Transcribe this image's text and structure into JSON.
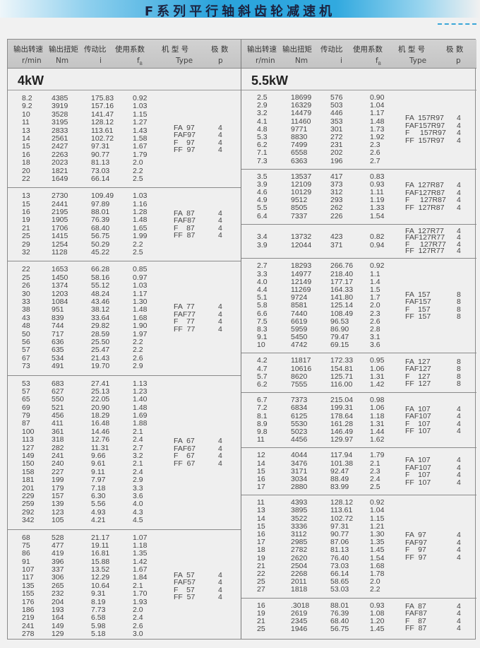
{
  "title": "F系列平行轴斜齿轮减速机",
  "header": {
    "labels": [
      "输出转速",
      "输出扭矩",
      "传动比",
      "使用系数",
      "机 型 号",
      "极  数"
    ],
    "units": {
      "speed": "r/min",
      "torque": "Nm",
      "ratio": "i",
      "fb_main": "f",
      "fb_sub": "B",
      "type": "Type",
      "p": "p"
    }
  },
  "sections": [
    {
      "power": "4kW",
      "groups": [
        {
          "rows": [
            [
              "8.2",
              "4385",
              "175.83",
              "0.92"
            ],
            [
              "9.2",
              "3919",
              "157.16",
              "1.03"
            ],
            [
              "10",
              "3528",
              "141.47",
              "1.15"
            ],
            [
              "11",
              "3195",
              "128.12",
              "1.27"
            ],
            [
              "13",
              "2833",
              "113.61",
              "1.43"
            ],
            [
              "14",
              "2561",
              "102.72",
              "1.58"
            ],
            [
              "15",
              "2427",
              "97.31",
              "1.67"
            ],
            [
              "16",
              "2263",
              "90.77",
              "1.79"
            ],
            [
              "18",
              "2023",
              "81.13",
              "2.0"
            ],
            [
              "20",
              "1821",
              "73.03",
              "2.2"
            ],
            [
              "22",
              "1649",
              "66.14",
              "2.5"
            ]
          ],
          "types": [
            [
              "FA  97",
              "4"
            ],
            [
              "FAF97",
              "4"
            ],
            [
              "F    97",
              "4"
            ],
            [
              "FF  97",
              "4"
            ]
          ]
        },
        {
          "rows": [
            [
              "13",
              "2730",
              "109.49",
              "1.03"
            ],
            [
              "15",
              "2441",
              "97.89",
              "1.16"
            ],
            [
              "16",
              "2195",
              "88.01",
              "1.28"
            ],
            [
              "19",
              "1905",
              "76.39",
              "1.48"
            ],
            [
              "21",
              "1706",
              "68.40",
              "1.65"
            ],
            [
              "25",
              "1415",
              "56.75",
              "1.99"
            ],
            [
              "29",
              "1254",
              "50.29",
              "2.2"
            ],
            [
              "32",
              "1128",
              "45.22",
              "2.5"
            ]
          ],
          "types": [
            [
              "FA  87",
              "4"
            ],
            [
              "FAF87",
              "4"
            ],
            [
              "F    87",
              "4"
            ],
            [
              "FF  87",
              "4"
            ]
          ]
        },
        {
          "rows": [
            [
              "22",
              "1653",
              "66.28",
              "0.85"
            ],
            [
              "25",
              "1450",
              "58.16",
              "0.97"
            ],
            [
              "26",
              "1374",
              "55.12",
              "1.03"
            ],
            [
              "30",
              "1203",
              "48.24",
              "1.17"
            ],
            [
              "33",
              "1084",
              "43.46",
              "1.30"
            ],
            [
              "38",
              "951",
              "38.12",
              "1.48"
            ],
            [
              "43",
              "839",
              "33.64",
              "1.68"
            ],
            [
              "48",
              "744",
              "29.82",
              "1.90"
            ],
            [
              "50",
              "717",
              "28.59",
              "1.97"
            ],
            [
              "56",
              "636",
              "25.50",
              "2.2"
            ],
            [
              "57",
              "635",
              "25.47",
              "2.2"
            ],
            [
              "67",
              "534",
              "21.43",
              "2.6"
            ],
            [
              "73",
              "491",
              "19.70",
              "2.9"
            ]
          ],
          "types": [
            [
              "FA  77",
              "4"
            ],
            [
              "FAF77",
              "4"
            ],
            [
              "F    77",
              "4"
            ],
            [
              "FF  77",
              "4"
            ]
          ]
        },
        {
          "rows": [
            [
              "53",
              "683",
              "27.41",
              "1.13"
            ],
            [
              "57",
              "627",
              "25.13",
              "1.23"
            ],
            [
              "65",
              "550",
              "22.05",
              "1.40"
            ],
            [
              "69",
              "521",
              "20.90",
              "1.48"
            ],
            [
              "79",
              "456",
              "18.29",
              "1.69"
            ],
            [
              "87",
              "411",
              "16.48",
              "1.88"
            ],
            [
              "100",
              "361",
              "14.46",
              "2.1"
            ],
            [
              "113",
              "318",
              "12.76",
              "2.4"
            ],
            [
              "127",
              "282",
              "11.31",
              "2.7"
            ],
            [
              "149",
              "241",
              "9.66",
              "3.2"
            ],
            [
              "150",
              "240",
              "9.61",
              "2.1"
            ],
            [
              "158",
              "227",
              "9.11",
              "2.4"
            ],
            [
              "181",
              "199",
              "7.97",
              "2.9"
            ],
            [
              "201",
              "179",
              "7.18",
              "3.3"
            ],
            [
              "229",
              "157",
              "6.30",
              "3.6"
            ],
            [
              "259",
              "139",
              "5.56",
              "4.0"
            ],
            [
              "292",
              "123",
              "4.93",
              "4.3"
            ],
            [
              "342",
              "105",
              "4.21",
              "4.5"
            ]
          ],
          "types": [
            [
              "FA  67",
              "4"
            ],
            [
              "FAF67",
              "4"
            ],
            [
              "F    67",
              "4"
            ],
            [
              "FF  67",
              "4"
            ]
          ]
        },
        {
          "rows": [
            [
              "68",
              "528",
              "21.17",
              "1.07"
            ],
            [
              "75",
              "477",
              "19.11",
              "1.18"
            ],
            [
              "86",
              "419",
              "16.81",
              "1.35"
            ],
            [
              "91",
              "396",
              "15.88",
              "1.42"
            ],
            [
              "107",
              "337",
              "13.52",
              "1.67"
            ],
            [
              "117",
              "306",
              "12.29",
              "1.84"
            ],
            [
              "135",
              "265",
              "10.64",
              "2.1"
            ],
            [
              "155",
              "232",
              "9.31",
              "1.70"
            ],
            [
              "176",
              "204",
              "8.19",
              "1.93"
            ],
            [
              "186",
              "193",
              "7.73",
              "2.0"
            ],
            [
              "219",
              "164",
              "6.58",
              "2.4"
            ],
            [
              "241",
              "149",
              "5.98",
              "2.6"
            ],
            [
              "278",
              "129",
              "5.18",
              "3.0"
            ]
          ],
          "types": [
            [
              "FA  57",
              "4"
            ],
            [
              "FAF57",
              "4"
            ],
            [
              "F    57",
              "4"
            ],
            [
              "FF  57",
              "4"
            ]
          ]
        }
      ]
    },
    {
      "power": "5.5kW",
      "groups": [
        {
          "rows": [
            [
              "2.5",
              "18699",
              "576",
              "0.90"
            ],
            [
              "2.9",
              "16329",
              "503",
              "1.04"
            ],
            [
              "3.2",
              "14479",
              "446",
              "1.17"
            ],
            [
              "4.1",
              "11460",
              "353",
              "1.48"
            ],
            [
              "4.8",
              "9771",
              "301",
              "1.73"
            ],
            [
              "5.3",
              "8830",
              "272",
              "1.92"
            ],
            [
              "6.2",
              "7499",
              "231",
              "2.3"
            ],
            [
              "7.1",
              "6558",
              "202",
              "2.6"
            ],
            [
              "7.3",
              "6363",
              "196",
              "2.7"
            ]
          ],
          "types": [
            [
              "FA  157R97",
              "4"
            ],
            [
              "FAF157R97",
              "4"
            ],
            [
              "F     157R97",
              "4"
            ],
            [
              "FF  157R97",
              "4"
            ]
          ]
        },
        {
          "rows": [
            [
              "3.5",
              "13537",
              "417",
              "0.83"
            ],
            [
              "3.9",
              "12109",
              "373",
              "0.93"
            ],
            [
              "4.6",
              "10129",
              "312",
              "1.11"
            ],
            [
              "4.9",
              "9512",
              "293",
              "1.19"
            ],
            [
              "5.5",
              "8505",
              "262",
              "1.33"
            ],
            [
              "6.4",
              "7337",
              "226",
              "1.54"
            ]
          ],
          "types": [
            [
              "FA  127R87",
              "4"
            ],
            [
              "FAF127R87",
              "4"
            ],
            [
              "F     127R87",
              "4"
            ],
            [
              "FF  127R87",
              "4"
            ]
          ]
        },
        {
          "rows": [
            [
              "3.4",
              "13732",
              "423",
              "0.82"
            ],
            [
              "3.9",
              "12044",
              "371",
              "0.94"
            ]
          ],
          "types": [
            [
              "FA  127R77",
              "4"
            ],
            [
              "FAF127R77",
              "4"
            ],
            [
              "F     127R77",
              "4"
            ],
            [
              "FF  127R77",
              "4"
            ]
          ]
        },
        {
          "rows": [
            [
              "2.7",
              "18293",
              "266.76",
              "0.92"
            ],
            [
              "3.3",
              "14977",
              "218.40",
              "1.1"
            ],
            [
              "4.0",
              "12149",
              "177.17",
              "1.4"
            ],
            [
              "4.4",
              "11269",
              "164.33",
              "1.5"
            ],
            [
              "5.1",
              "9724",
              "141.80",
              "1.7"
            ],
            [
              "5.8",
              "8581",
              "125.14",
              "2.0"
            ],
            [
              "6.6",
              "7440",
              "108.49",
              "2.3"
            ],
            [
              "7.5",
              "6619",
              "96.53",
              "2.6"
            ],
            [
              "8.3",
              "5959",
              "86.90",
              "2.8"
            ],
            [
              "9.1",
              "5450",
              "79.47",
              "3.1"
            ],
            [
              "10",
              "4742",
              "69.15",
              "3.6"
            ]
          ],
          "types": [
            [
              "FA  157",
              "8"
            ],
            [
              "FAF157",
              "8"
            ],
            [
              "F    157",
              "8"
            ],
            [
              "FF  157",
              "8"
            ]
          ]
        },
        {
          "rows": [
            [
              "4.2",
              "11817",
              "172.33",
              "0.95"
            ],
            [
              "4.7",
              "10616",
              "154.81",
              "1.06"
            ],
            [
              "5.7",
              "8620",
              "125.71",
              "1.31"
            ],
            [
              "6.2",
              "7555",
              "116.00",
              "1.42"
            ]
          ],
          "types": [
            [
              "FA  127",
              "8"
            ],
            [
              "FAF127",
              "8"
            ],
            [
              "F    127",
              "8"
            ],
            [
              "FF  127",
              "8"
            ]
          ]
        },
        {
          "rows": [
            [
              "6.7",
              "7373",
              "215.04",
              "0.98"
            ],
            [
              "7.2",
              "6834",
              "199.31",
              "1.06"
            ],
            [
              "8.1",
              "6125",
              "178.64",
              "1.18"
            ],
            [
              "8.9",
              "5530",
              "161.28",
              "1.31"
            ],
            [
              "9.8",
              "5023",
              "146.49",
              "1.44"
            ],
            [
              "11",
              "4456",
              "129.97",
              "1.62"
            ]
          ],
          "types": [
            [
              "FA  107",
              "4"
            ],
            [
              "FAF107",
              "4"
            ],
            [
              "F    107",
              "4"
            ],
            [
              "FF  107",
              "4"
            ]
          ]
        },
        {
          "rows": [
            [
              "12",
              "4044",
              "117.94",
              "1.79"
            ],
            [
              "14",
              "3476",
              "101.38",
              "2.1"
            ],
            [
              "15",
              "3171",
              "92.47",
              "2.3"
            ],
            [
              "16",
              "3034",
              "88.49",
              "2.4"
            ],
            [
              "17",
              "2880",
              "83.99",
              "2.5"
            ]
          ],
          "types": [
            [
              "FA  107",
              "4"
            ],
            [
              "FAF107",
              "4"
            ],
            [
              "F    107",
              "4"
            ],
            [
              "FF  107",
              "4"
            ]
          ]
        },
        {
          "rows": [
            [
              "11",
              "4393",
              "128.12",
              "0.92"
            ],
            [
              "13",
              "3895",
              "113.61",
              "1.04"
            ],
            [
              "14",
              "3522",
              "102.72",
              "1.15"
            ],
            [
              "15",
              "3336",
              "97.31",
              "1.21"
            ],
            [
              "16",
              "3112",
              "90.77",
              "1.30"
            ],
            [
              "17",
              "2985",
              "87.06",
              "1.35"
            ],
            [
              "18",
              "2782",
              "81.13",
              "1.45"
            ],
            [
              "19",
              "2620",
              "76.40",
              "1.54"
            ],
            [
              "21",
              "2504",
              "73.03",
              "1.68"
            ],
            [
              "22",
              "2268",
              "66.14",
              "1.78"
            ],
            [
              "25",
              "2011",
              "58.65",
              "2.0"
            ],
            [
              "27",
              "1818",
              "53.03",
              "2.2"
            ]
          ],
          "types": [
            [
              "FA  97",
              "4"
            ],
            [
              "FAF97",
              "4"
            ],
            [
              "F    97",
              "4"
            ],
            [
              "FF  97",
              "4"
            ]
          ]
        },
        {
          "rows": [
            [
              "16",
              ".3018",
              "88.01",
              "0.93"
            ],
            [
              "19",
              "2619",
              "76.39",
              "1.08"
            ],
            [
              "21",
              "2345",
              "68.40",
              "1.20"
            ],
            [
              "25",
              "1946",
              "56.75",
              "1.45"
            ]
          ],
          "types": [
            [
              "FA  87",
              "4"
            ],
            [
              "FAF87",
              "4"
            ],
            [
              "F    87",
              "4"
            ],
            [
              "FF  87",
              "4"
            ]
          ]
        }
      ]
    }
  ],
  "colors": {
    "banner": "#2aa3dc",
    "title_text": "#1b2340",
    "header_bg": "#c8c8c8",
    "page_bg": "#f1f1f1"
  }
}
